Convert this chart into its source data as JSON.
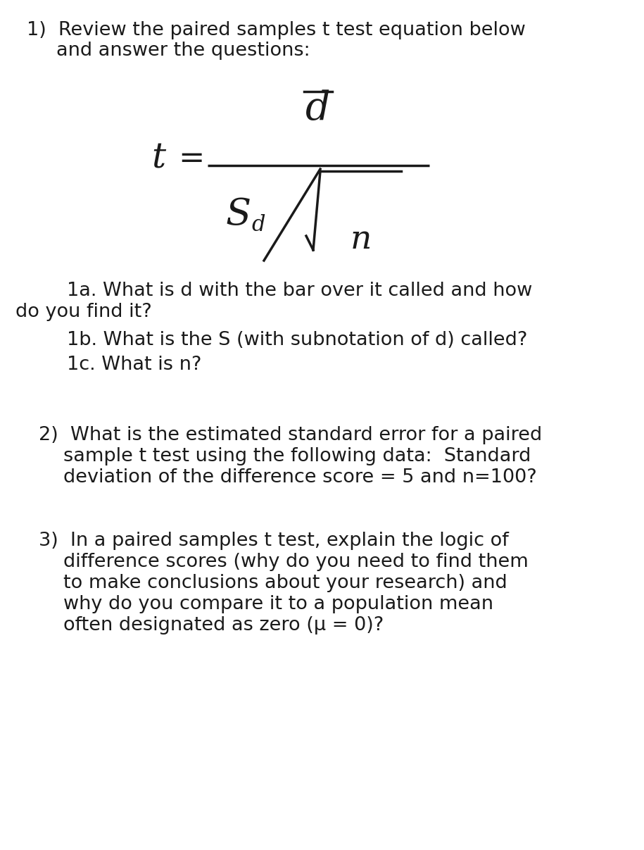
{
  "background_color": "#ffffff",
  "text_color": "#1a1a1a",
  "font_size_main": 19.5,
  "figsize": [
    9.15,
    12.07
  ],
  "dpi": 100,
  "texts": {
    "q1_line1": "1)  Review the paired samples t test equation below",
    "q1_line2": "and answer the questions:",
    "q1a_line1": "1a. What is d with the bar over it called and how",
    "q1a_line2": "do you find it?",
    "q1b": "1b. What is the S (with subnotation of d) called?",
    "q1c": "1c. What is n?",
    "q2_line1": "2)  What is the estimated standard error for a paired",
    "q2_line2": "sample t test using the following data:  Standard",
    "q2_line3": "deviation of the difference score = 5 and n=100?",
    "q3_line1": "3)  In a paired samples t test, explain the logic of",
    "q3_line2": "difference scores (why do you need to find them",
    "q3_line3": "to make conclusions about your research) and",
    "q3_line4": "why do you compare it to a population mean",
    "q3_line5": "often designated as zero (μ = 0)?"
  }
}
